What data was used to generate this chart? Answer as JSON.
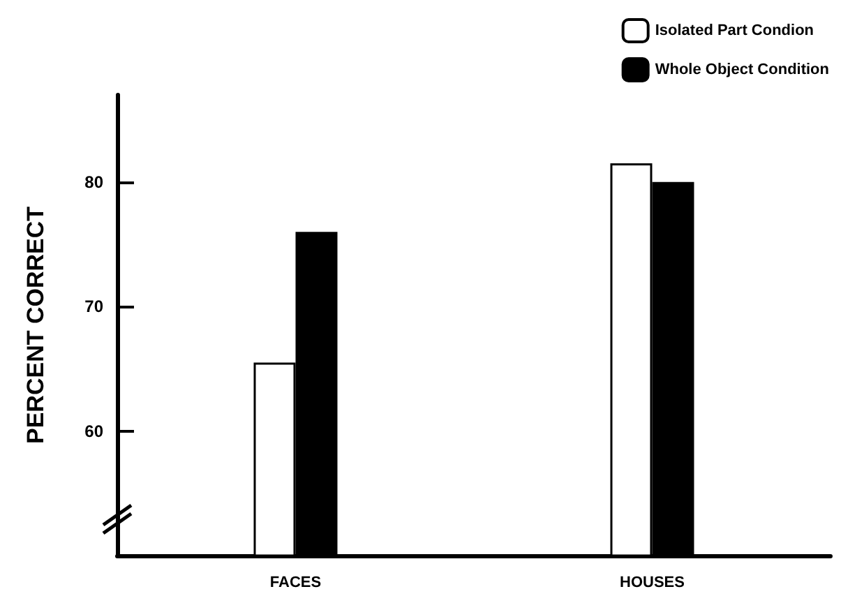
{
  "chart_data": {
    "type": "bar",
    "ylabel": "PERCENT CORRECT",
    "categories": [
      "FACES",
      "HOUSES"
    ],
    "series": [
      {
        "name": "Isolated Part Condion",
        "color": "#ffffff",
        "values": [
          65.5,
          81.5
        ]
      },
      {
        "name": "Whole Object Condition",
        "color": "#000000",
        "values": [
          76,
          80
        ]
      }
    ],
    "ylim": [
      50,
      87
    ],
    "yticks": [
      60,
      70,
      80
    ],
    "grid": false,
    "legend": "top right"
  }
}
